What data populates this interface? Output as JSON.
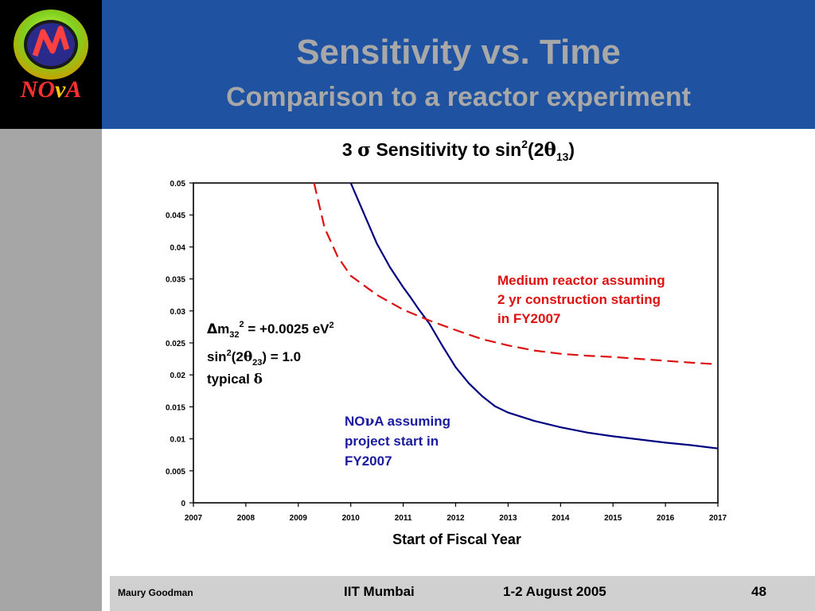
{
  "slide": {
    "title": "Sensitivity vs. Time",
    "subtitle": "Comparison to a reactor experiment"
  },
  "logo": {
    "text_part1": "NO",
    "text_nu": "ν",
    "text_part2": "A"
  },
  "footer": {
    "author": "Maury Goodman",
    "venue": "IIT Mumbai",
    "date": "1-2 August 2005",
    "page": "48"
  },
  "chart_data": {
    "type": "line",
    "title": "3 σ Sensitivity to sin²(2θ13)",
    "title_parts": {
      "pre": "3 ",
      "sigma": "σ",
      "mid": " Sensitivity to sin",
      "sup": "2",
      "post1": "(2",
      "theta": "θ",
      "sub": "13",
      "post2": ")"
    },
    "xlabel": "Start of Fiscal Year",
    "ylabel": "",
    "xlim": [
      2007,
      2017
    ],
    "ylim": [
      0,
      0.05
    ],
    "x_ticks": [
      "2007",
      "2008",
      "2009",
      "2010",
      "2011",
      "2012",
      "2013",
      "2014",
      "2015",
      "2016",
      "2017"
    ],
    "y_ticks": [
      "0",
      "0.005",
      "0.01",
      "0.015",
      "0.02",
      "0.025",
      "0.03",
      "0.035",
      "0.04",
      "0.045",
      "0.05"
    ],
    "grid": false,
    "series": [
      {
        "color": "#000080",
        "style": "solid",
        "x": [
          2010.0,
          2010.5,
          2010.75,
          2011.0,
          2011.15,
          2011.3,
          2011.5,
          2011.75,
          2012.0,
          2012.25,
          2012.5,
          2012.75,
          2013.0,
          2013.5,
          2014.0,
          2014.5,
          2015.0,
          2015.5,
          2016.0,
          2016.5,
          2017.0
        ],
        "y": [
          0.05,
          0.0405,
          0.0368,
          0.0337,
          0.032,
          0.0302,
          0.028,
          0.0245,
          0.0212,
          0.0187,
          0.0167,
          0.0151,
          0.0141,
          0.0128,
          0.0118,
          0.011,
          0.0104,
          0.0099,
          0.0094,
          0.009,
          0.0085
        ]
      },
      {
        "color": "#dd1111",
        "style": "dashed",
        "x": [
          2009.3,
          2009.5,
          2009.75,
          2010.0,
          2010.5,
          2011.0,
          2011.5,
          2012.0,
          2012.5,
          2013.0,
          2013.5,
          2014.0,
          2014.5,
          2015.0,
          2015.5,
          2016.0,
          2016.5,
          2016.9
        ],
        "y": [
          0.05,
          0.043,
          0.0385,
          0.0355,
          0.0325,
          0.0302,
          0.0285,
          0.027,
          0.0256,
          0.0246,
          0.0238,
          0.0233,
          0.023,
          0.0228,
          0.0225,
          0.0222,
          0.0219,
          0.0217
        ]
      }
    ],
    "annotations": {
      "params": {
        "line1": {
          "delta": "Δ",
          "m": "m",
          "sub": "32",
          "sup": "2",
          "rest": " = +0.0025 eV",
          "sup2": "2"
        },
        "line2": {
          "pre": "sin",
          "sup": "2",
          "mid": "(2",
          "theta": "θ",
          "sub": "23",
          "post": ") = 1.0"
        },
        "line3": {
          "pre": "typical ",
          "delta": "δ"
        }
      },
      "reactor_label": [
        "Medium reactor assuming",
        "2 yr construction starting",
        "in FY2007"
      ],
      "nova_label": {
        "line1_pre": "NO",
        "line1_nu": "ν",
        "line1_post": "A assuming",
        "line2": "project start in",
        "line3": "FY2007"
      }
    }
  }
}
